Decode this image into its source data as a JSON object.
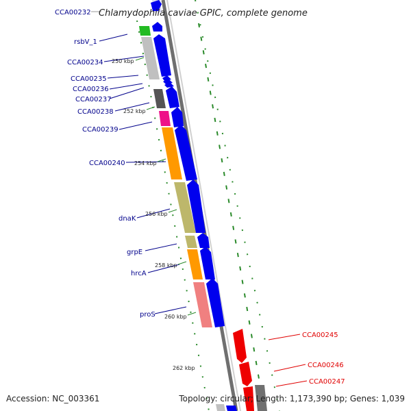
{
  "title": "Chlamydophila caviae GPIC, complete genome",
  "footer": {
    "accession": "Accession: NC_003361",
    "summary": "Topology: circular; Length: 1,173,390 bp; Genes: 1,039"
  },
  "colors": {
    "forward_arrow": "#0000ee",
    "reverse_arrow": "#ee0000",
    "forward_label": "#00008b",
    "reverse_label": "#e00000",
    "backbone": "#808080",
    "tick_marks": "#2a8a2a"
  },
  "gene_labels_forward": [
    "CCA00232",
    "rsbV_1",
    "CCA00234",
    "CCA00235",
    "CCA00236",
    "CCA00237",
    "CCA00238",
    "CCA00239",
    "CCA00240",
    "dnaK",
    "grpE",
    "hrcA",
    "proS"
  ],
  "gene_labels_reverse": [
    "CCA00245",
    "CCA00246",
    "CCA00247"
  ],
  "position_ticks": [
    "250 kbp",
    "252 kbp",
    "254 kbp",
    "256 kbp",
    "258 kbp",
    "260 kbp",
    "262 kbp"
  ]
}
